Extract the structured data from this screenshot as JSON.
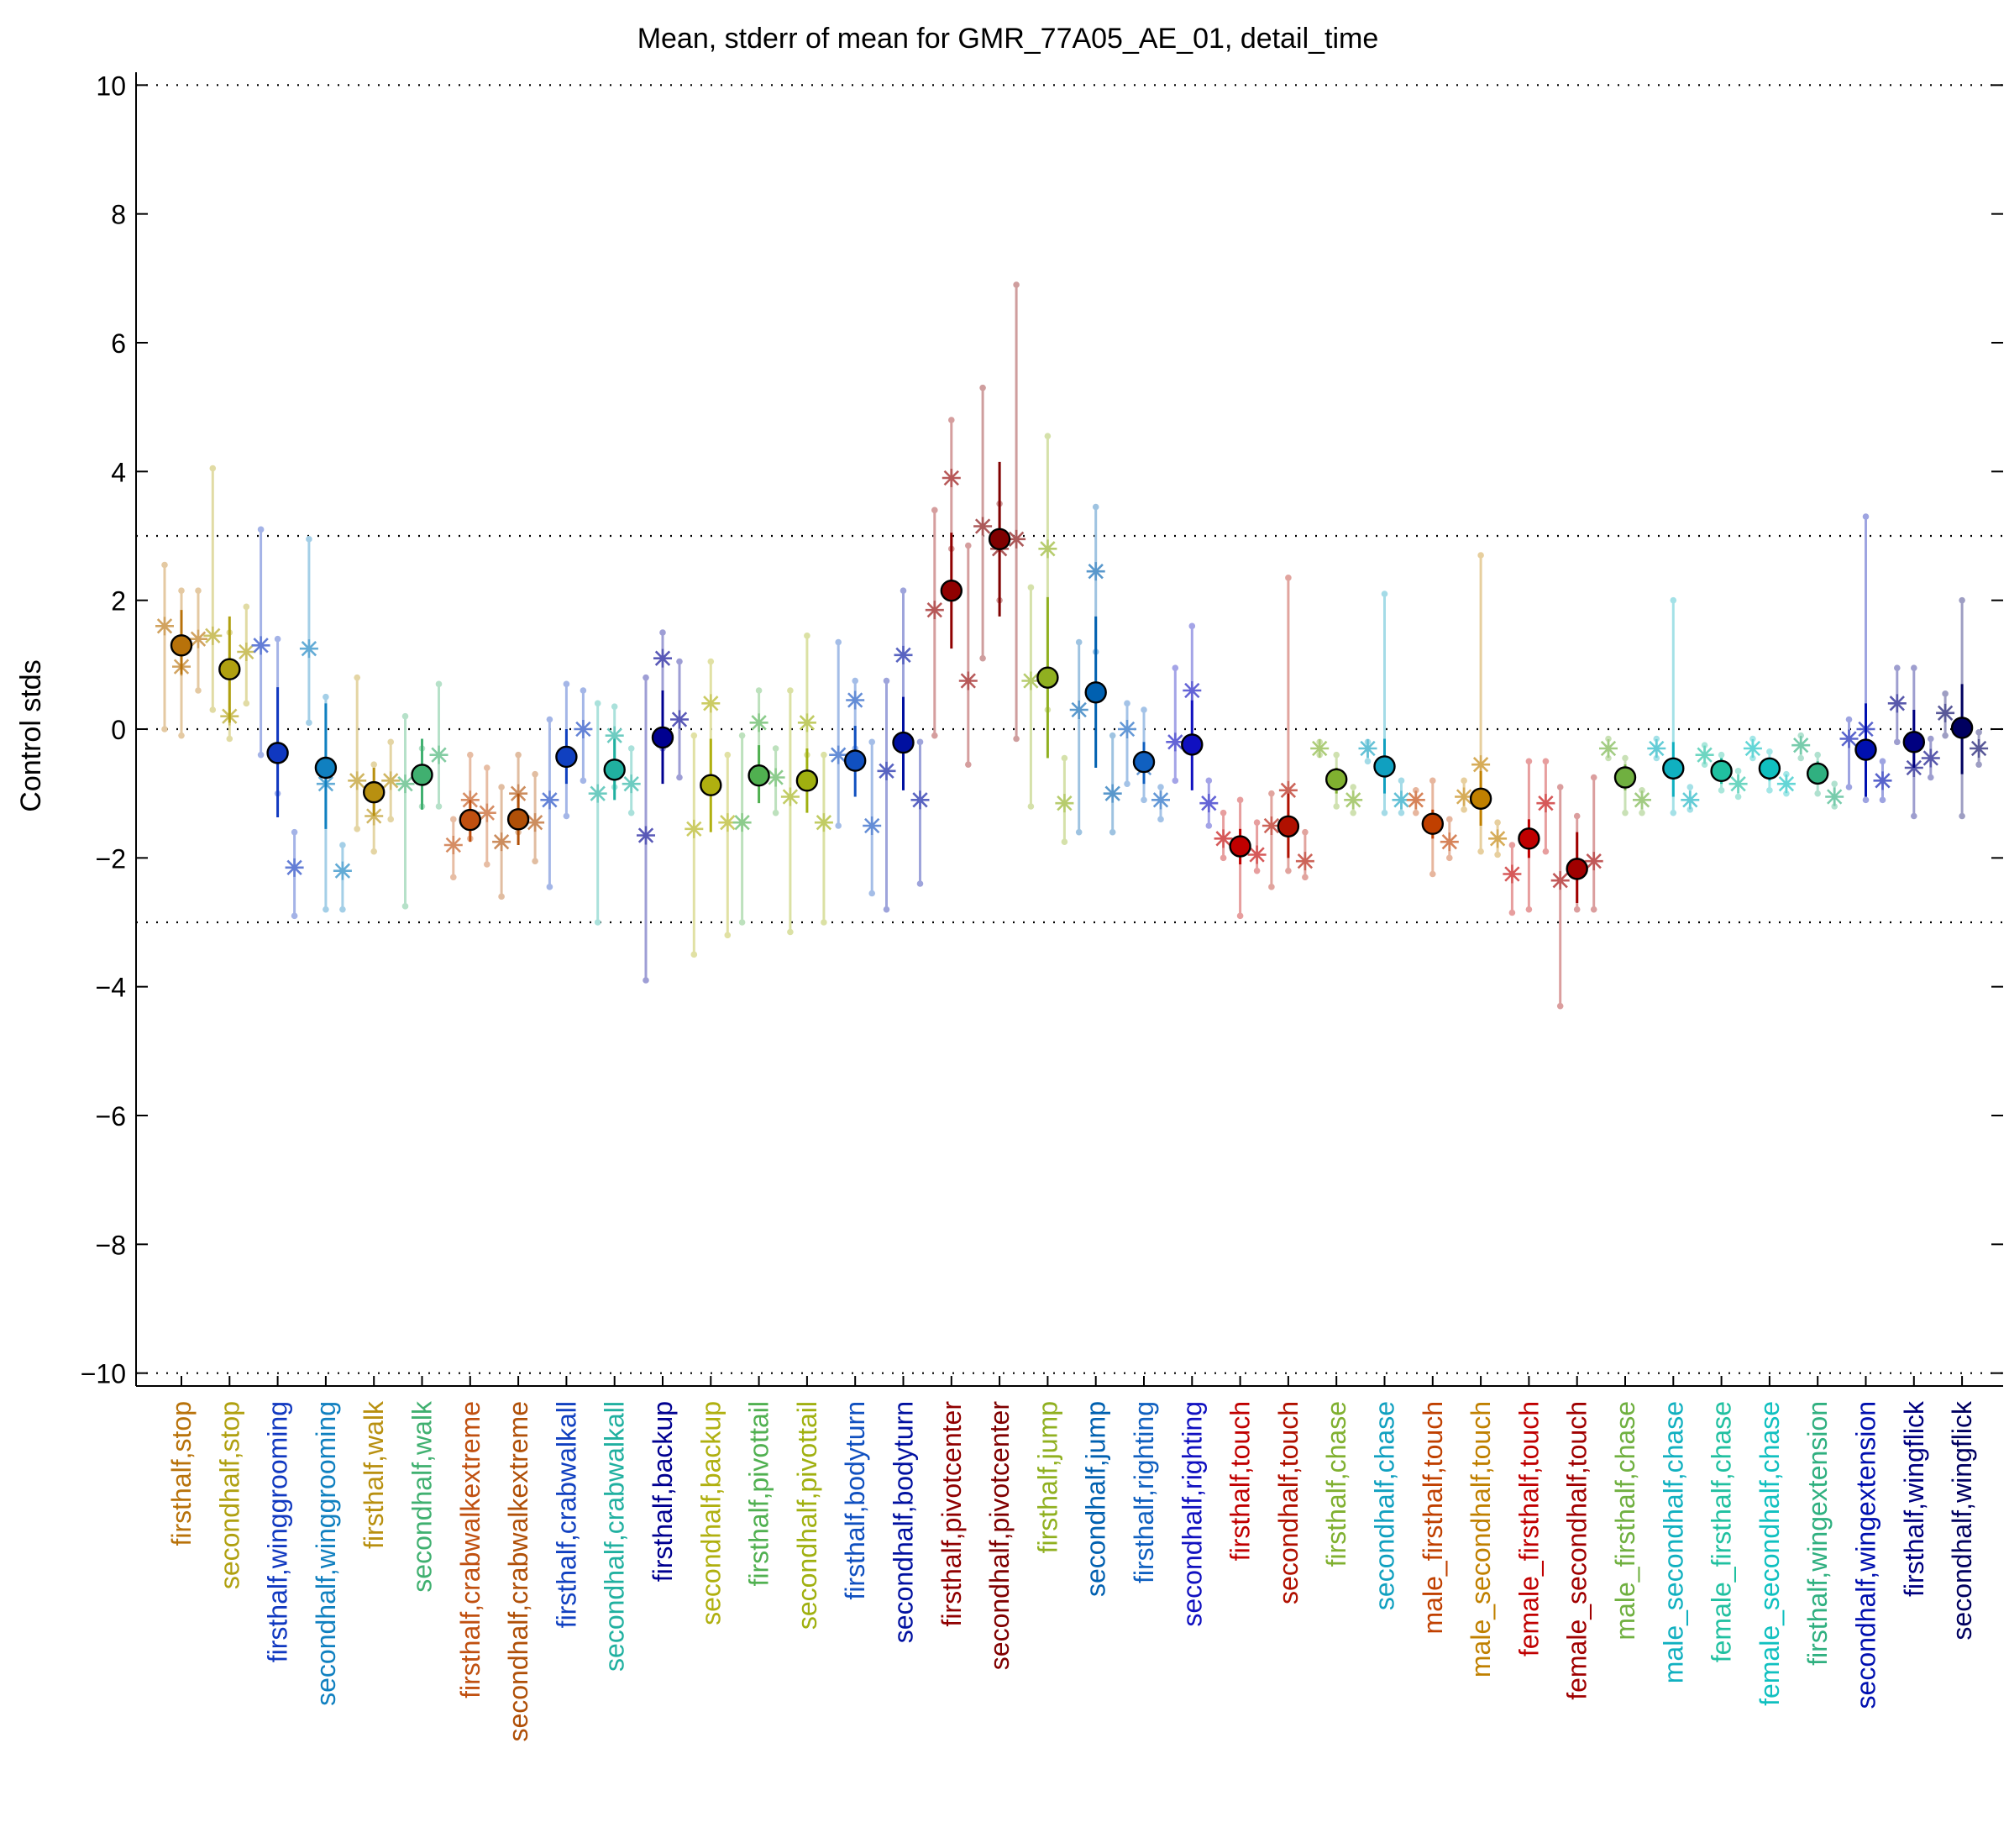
{
  "chart_data": {
    "type": "scatter",
    "title": "Mean, stderr of mean for GMR_77A05_AE_01, detail_time",
    "xlabel": "",
    "ylabel": "Control stds",
    "ylim": [
      -10.2,
      10.2
    ],
    "yticks": [
      -10,
      -8,
      -6,
      -4,
      -2,
      0,
      2,
      4,
      6,
      8,
      10
    ],
    "ytick_labels": [
      "−10",
      "−8",
      "−6",
      "−4",
      "−2",
      "0",
      "2",
      "4",
      "6",
      "8",
      "10"
    ],
    "reference_lines": [
      -10,
      -3,
      0,
      3,
      10
    ],
    "grid": false,
    "legend": "none",
    "categories": [
      "firsthalf,stop",
      "secondhalf,stop",
      "firsthalf,winggrooming",
      "secondhalf,winggrooming",
      "firsthalf,walk",
      "secondhalf,walk",
      "firsthalf,crabwalkextreme",
      "secondhalf,crabwalkextreme",
      "firsthalf,crabwalkall",
      "secondhalf,crabwalkall",
      "firsthalf,backup",
      "secondhalf,backup",
      "firsthalf,pivottail",
      "secondhalf,pivottail",
      "firsthalf,bodyturn",
      "secondhalf,bodyturn",
      "firsthalf,pivotcenter",
      "secondhalf,pivotcenter",
      "firsthalf,jump",
      "secondhalf,jump",
      "firsthalf,righting",
      "secondhalf,righting",
      "firsthalf,touch",
      "secondhalf,touch",
      "firsthalf,chase",
      "secondhalf,chase",
      "male_firsthalf,touch",
      "male_secondhalf,touch",
      "female_firsthalf,touch",
      "female_secondhalf,touch",
      "male_firsthalf,chase",
      "male_secondhalf,chase",
      "female_firsthalf,chase",
      "female_secondhalf,chase",
      "firsthalf,wingextension",
      "secondhalf,wingextension",
      "firsthalf,wingflick",
      "secondhalf,wingflick"
    ],
    "colors": [
      "#b8720a",
      "#b0a010",
      "#1038c0",
      "#1080c0",
      "#b89010",
      "#40b070",
      "#c05010",
      "#b05008",
      "#1040c0",
      "#20b0a0",
      "#000090",
      "#b0b010",
      "#50b050",
      "#a0b010",
      "#1050c0",
      "#0010a0",
      "#900000",
      "#800000",
      "#90b020",
      "#0060b0",
      "#1060c0",
      "#1010c0",
      "#c00000",
      "#b01000",
      "#80b030",
      "#10a0c0",
      "#c04000",
      "#c08000",
      "#c00000",
      "#a00000",
      "#70b040",
      "#10b0c0",
      "#20c0a0",
      "#10c0c0",
      "#30b080",
      "#0010b0",
      "#000080",
      "#000060"
    ],
    "mean": [
      1.3,
      0.93,
      -0.37,
      -0.6,
      -0.98,
      -0.71,
      -1.41,
      -1.4,
      -0.43,
      -0.63,
      -0.13,
      -0.87,
      -0.72,
      -0.8,
      -0.49,
      -0.21,
      2.15,
      2.95,
      0.8,
      0.57,
      -0.51,
      -0.24,
      -1.82,
      -1.51,
      -0.78,
      -0.58,
      -1.47,
      -1.08,
      -1.7,
      -2.17,
      -0.75,
      -0.61,
      -0.65,
      -0.61,
      -0.69,
      -0.32,
      -0.2,
      0.02
    ],
    "stderr_low": [
      0.85,
      0.1,
      -1.37,
      -1.55,
      -1.35,
      -1.25,
      -1.75,
      -1.8,
      -0.85,
      -1.1,
      -0.85,
      -1.6,
      -1.15,
      -1.3,
      -1.05,
      -0.95,
      1.25,
      1.75,
      -0.45,
      -0.6,
      -0.85,
      -0.95,
      -2.1,
      -2.0,
      -1.0,
      -1.0,
      -1.7,
      -1.5,
      -2.0,
      -2.7,
      -0.95,
      -1.05,
      -0.85,
      -0.8,
      -0.85,
      -1.05,
      -0.6,
      -0.7
    ],
    "stderr_high": [
      1.85,
      1.75,
      0.65,
      0.4,
      -0.6,
      -0.15,
      -1.1,
      -1.0,
      0.0,
      -0.15,
      0.6,
      -0.15,
      -0.25,
      -0.3,
      0.05,
      0.5,
      3.05,
      4.15,
      2.05,
      1.75,
      -0.2,
      0.45,
      -1.55,
      -1.0,
      -0.6,
      -0.15,
      -1.25,
      -0.65,
      -1.4,
      -1.6,
      -0.55,
      -0.2,
      -0.45,
      -0.45,
      -0.5,
      0.4,
      0.3,
      0.7
    ],
    "sub_means": [
      [
        1.6,
        0.97,
        1.4
      ],
      [
        1.45,
        0.2,
        1.2
      ],
      [
        1.3,
        -0.37,
        -2.15
      ],
      [
        1.25,
        -0.85,
        -2.2
      ],
      [
        -0.8,
        -1.35,
        -0.8
      ],
      [
        -0.85,
        -0.71,
        -0.4
      ],
      [
        -1.8,
        -1.1,
        -1.3
      ],
      [
        -1.75,
        -1.0,
        -1.45
      ],
      [
        -1.1,
        -0.43,
        0.0
      ],
      [
        -1.0,
        -0.1,
        -0.85
      ],
      [
        -1.65,
        1.1,
        0.15
      ],
      [
        -1.55,
        0.4,
        -1.45
      ],
      [
        -1.45,
        0.1,
        -0.75
      ],
      [
        -1.05,
        0.1,
        -1.45
      ],
      [
        -0.4,
        0.45,
        -1.5
      ],
      [
        -0.65,
        1.15,
        -1.1
      ],
      [
        1.85,
        3.9,
        0.75
      ],
      [
        3.15,
        2.8,
        2.95
      ],
      [
        0.75,
        2.8,
        -1.15
      ],
      [
        0.3,
        2.45,
        -1.0
      ],
      [
        0.0,
        -0.6,
        -1.1
      ],
      [
        -0.2,
        0.6,
        -1.15
      ],
      [
        -1.7,
        -1.82,
        -1.95
      ],
      [
        -1.5,
        -0.95,
        -2.05
      ],
      [
        -0.3,
        -0.78,
        -1.1
      ],
      [
        -0.3,
        -0.58,
        -1.1
      ],
      [
        -1.1,
        -1.47,
        -1.75
      ],
      [
        -1.05,
        -0.55,
        -1.7
      ],
      [
        -2.25,
        -1.7,
        -1.15
      ],
      [
        -2.35,
        -2.17,
        -2.05
      ],
      [
        -0.3,
        -0.75,
        -1.1
      ],
      [
        -0.3,
        -0.61,
        -1.1
      ],
      [
        -0.4,
        -0.65,
        -0.85
      ],
      [
        -0.3,
        -0.61,
        -0.85
      ],
      [
        -0.25,
        -0.69,
        -1.05
      ],
      [
        -0.15,
        0.0,
        -0.8
      ],
      [
        0.4,
        -0.6,
        -0.45
      ],
      [
        0.25,
        0.02,
        -0.3
      ]
    ],
    "sub_ranges": [
      [
        [
          0.0,
          2.55
        ],
        [
          -0.1,
          2.15
        ],
        [
          0.6,
          2.15
        ]
      ],
      [
        [
          0.3,
          4.05
        ],
        [
          -0.15,
          1.5
        ],
        [
          0.4,
          1.9
        ]
      ],
      [
        [
          -0.4,
          3.1
        ],
        [
          -1.0,
          1.4
        ],
        [
          -2.9,
          -1.6
        ]
      ],
      [
        [
          0.1,
          2.95
        ],
        [
          -2.8,
          0.5
        ],
        [
          -2.8,
          -1.8
        ]
      ],
      [
        [
          -1.55,
          0.8
        ],
        [
          -1.9,
          -0.55
        ],
        [
          -1.4,
          -0.2
        ]
      ],
      [
        [
          -2.75,
          0.2
        ],
        [
          -1.2,
          -0.3
        ],
        [
          -1.2,
          0.7
        ]
      ],
      [
        [
          -2.3,
          -1.4
        ],
        [
          -1.7,
          -0.4
        ],
        [
          -2.1,
          -0.6
        ]
      ],
      [
        [
          -2.6,
          -0.9
        ],
        [
          -1.6,
          -0.4
        ],
        [
          -2.05,
          -0.7
        ]
      ],
      [
        [
          -2.45,
          0.15
        ],
        [
          -1.35,
          0.7
        ],
        [
          -0.8,
          0.6
        ]
      ],
      [
        [
          -3.0,
          0.4
        ],
        [
          -0.9,
          0.35
        ],
        [
          -1.3,
          -0.3
        ]
      ],
      [
        [
          -3.9,
          0.8
        ],
        [
          -0.3,
          1.5
        ],
        [
          -0.75,
          1.05
        ]
      ],
      [
        [
          -3.5,
          -0.1
        ],
        [
          -0.8,
          1.05
        ],
        [
          -3.2,
          -0.4
        ]
      ],
      [
        [
          -3.0,
          -0.1
        ],
        [
          -0.7,
          0.6
        ],
        [
          -1.3,
          -0.3
        ]
      ],
      [
        [
          -3.15,
          0.6
        ],
        [
          -0.4,
          1.45
        ],
        [
          -3.0,
          -0.4
        ]
      ],
      [
        [
          -1.5,
          1.35
        ],
        [
          -0.3,
          0.75
        ],
        [
          -2.55,
          -0.2
        ]
      ],
      [
        [
          -2.8,
          0.75
        ],
        [
          -0.1,
          2.15
        ],
        [
          -2.4,
          -0.2
        ]
      ],
      [
        [
          -0.1,
          3.4
        ],
        [
          2.8,
          4.8
        ],
        [
          -0.55,
          2.85
        ]
      ],
      [
        [
          1.1,
          5.3
        ],
        [
          2.0,
          3.5
        ],
        [
          -0.15,
          6.9
        ]
      ],
      [
        [
          -1.2,
          2.2
        ],
        [
          0.3,
          4.55
        ],
        [
          -1.75,
          -0.45
        ]
      ],
      [
        [
          -1.6,
          1.35
        ],
        [
          1.2,
          3.45
        ],
        [
          -1.6,
          -0.1
        ]
      ],
      [
        [
          -0.85,
          0.4
        ],
        [
          -1.1,
          0.3
        ],
        [
          -1.4,
          -0.9
        ]
      ],
      [
        [
          -0.8,
          0.95
        ],
        [
          -0.3,
          1.6
        ],
        [
          -1.5,
          -0.8
        ]
      ],
      [
        [
          -2.0,
          -1.3
        ],
        [
          -2.9,
          -1.1
        ],
        [
          -2.2,
          -1.45
        ]
      ],
      [
        [
          -2.45,
          -1.0
        ],
        [
          -2.2,
          2.35
        ],
        [
          -2.3,
          -1.6
        ]
      ],
      [
        [
          -0.4,
          -0.2
        ],
        [
          -1.2,
          -0.4
        ],
        [
          -1.3,
          -0.9
        ]
      ],
      [
        [
          -0.5,
          -0.2
        ],
        [
          -1.3,
          2.1
        ],
        [
          -1.3,
          -0.8
        ]
      ],
      [
        [
          -1.3,
          -0.95
        ],
        [
          -2.25,
          -0.8
        ],
        [
          -2.0,
          -1.4
        ]
      ],
      [
        [
          -1.25,
          -0.8
        ],
        [
          -1.9,
          2.7
        ],
        [
          -1.95,
          -1.45
        ]
      ],
      [
        [
          -2.85,
          -1.8
        ],
        [
          -2.8,
          -0.5
        ],
        [
          -1.9,
          -0.5
        ]
      ],
      [
        [
          -4.3,
          -0.9
        ],
        [
          -2.8,
          -1.35
        ],
        [
          -2.8,
          -0.75
        ]
      ],
      [
        [
          -0.45,
          -0.15
        ],
        [
          -1.3,
          -0.45
        ],
        [
          -1.3,
          -0.95
        ]
      ],
      [
        [
          -0.45,
          -0.15
        ],
        [
          -1.3,
          2.0
        ],
        [
          -1.25,
          -0.9
        ]
      ],
      [
        [
          -0.55,
          -0.25
        ],
        [
          -0.95,
          -0.4
        ],
        [
          -1.05,
          -0.65
        ]
      ],
      [
        [
          -0.45,
          -0.15
        ],
        [
          -0.95,
          -0.35
        ],
        [
          -1.0,
          -0.7
        ]
      ],
      [
        [
          -0.45,
          -0.1
        ],
        [
          -1.0,
          -0.4
        ],
        [
          -1.2,
          -0.85
        ]
      ],
      [
        [
          -0.9,
          0.15
        ],
        [
          -1.1,
          3.3
        ],
        [
          -1.1,
          -0.5
        ]
      ],
      [
        [
          -0.2,
          0.95
        ],
        [
          -1.35,
          0.95
        ],
        [
          -0.75,
          -0.15
        ]
      ],
      [
        [
          -0.1,
          0.55
        ],
        [
          -1.35,
          2.0
        ],
        [
          -0.55,
          -0.05
        ]
      ]
    ]
  }
}
